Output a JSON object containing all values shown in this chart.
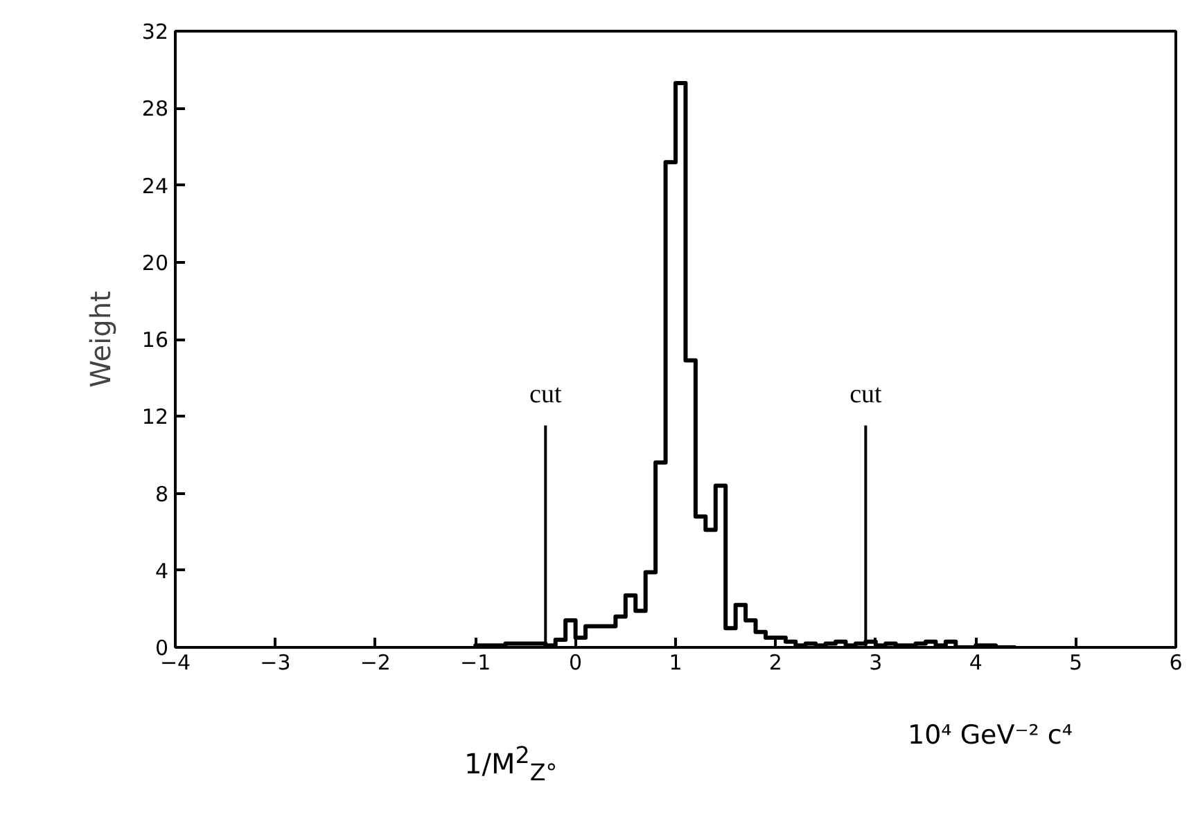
{
  "chart_data": {
    "type": "histogram",
    "xlabel": "1/M$^{2}$$_{Z°}$",
    "ylabel": "Weight",
    "bins": [
      -1.0,
      -0.9,
      -0.8,
      -0.7,
      -0.6,
      -0.5,
      -0.4,
      -0.3,
      -0.2,
      -0.1,
      0.0,
      0.1,
      0.2,
      0.3,
      0.4,
      0.5,
      0.6,
      0.7,
      0.8,
      0.9,
      1.0,
      1.1,
      1.2,
      1.3,
      1.4,
      1.5,
      1.6,
      1.7,
      1.8,
      1.9,
      2.0,
      2.1,
      2.2,
      2.3,
      2.4,
      2.5,
      2.6,
      2.7,
      2.8,
      2.9,
      3.0,
      3.1,
      3.2,
      3.3,
      3.4,
      3.5,
      3.6,
      3.7,
      3.8,
      3.9,
      4.0,
      4.1,
      4.2,
      4.3,
      4.4
    ],
    "values": [
      0.1,
      0.1,
      0.1,
      0.2,
      0.2,
      0.2,
      0.2,
      0.1,
      0.4,
      1.4,
      0.5,
      1.1,
      1.1,
      1.1,
      1.6,
      2.7,
      1.9,
      3.9,
      9.6,
      25.2,
      29.3,
      14.9,
      6.8,
      6.1,
      8.4,
      1.0,
      2.2,
      1.4,
      0.8,
      0.5,
      0.5,
      0.3,
      0.1,
      0.2,
      0.1,
      0.2,
      0.3,
      0.1,
      0.2,
      0.3,
      0.1,
      0.2,
      0.1,
      0.1,
      0.2,
      0.3,
      0.1,
      0.3,
      0,
      0,
      0.1,
      0.1,
      0,
      0
    ],
    "color": "#000000",
    "xlim": [
      -4,
      6
    ],
    "ylim": [
      0,
      32
    ],
    "xticks": [
      -4,
      -3,
      -2,
      -1,
      0,
      1,
      2,
      3,
      4,
      5,
      6
    ],
    "yticks": [
      0,
      4,
      8,
      12,
      16,
      20,
      24,
      28,
      32
    ],
    "grid": false,
    "ref_lines": [
      {
        "axis": "x",
        "value": -0.3,
        "label": "cut"
      },
      {
        "axis": "x",
        "value": 2.9,
        "label": "cut"
      }
    ],
    "annotations": [
      "10⁴ GeV⁻² c⁴"
    ]
  }
}
